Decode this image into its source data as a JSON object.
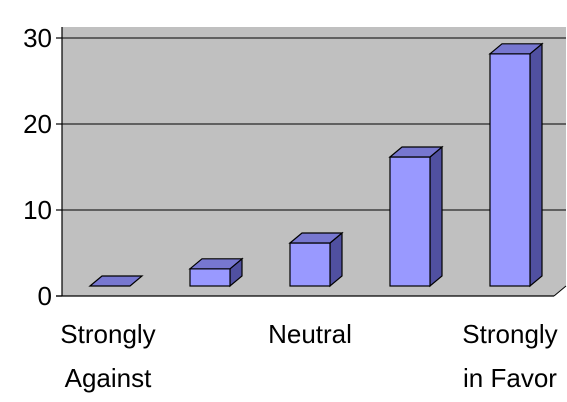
{
  "chart_data": {
    "type": "bar",
    "style": "3d-column",
    "categories": [
      "Strongly Against",
      "",
      "Neutral",
      "",
      "Strongly in Favor"
    ],
    "category_label_lines": [
      [
        "Strongly",
        "Against"
      ],
      [],
      [
        "Neutral"
      ],
      [],
      [
        "Strongly",
        "in Favor"
      ]
    ],
    "values": [
      0,
      2,
      5,
      15,
      27
    ],
    "ylim": [
      0,
      30
    ],
    "yticks": [
      0,
      10,
      20,
      30
    ],
    "grid": true,
    "legend": "none",
    "title": "",
    "xlabel": "",
    "ylabel": ""
  },
  "colors": {
    "plot_background": "#C0C0C0",
    "bar_front": "#9999FF",
    "bar_top": "#7777D0",
    "bar_side": "#5050A0",
    "gridline": "#000000",
    "outline": "#000000"
  }
}
